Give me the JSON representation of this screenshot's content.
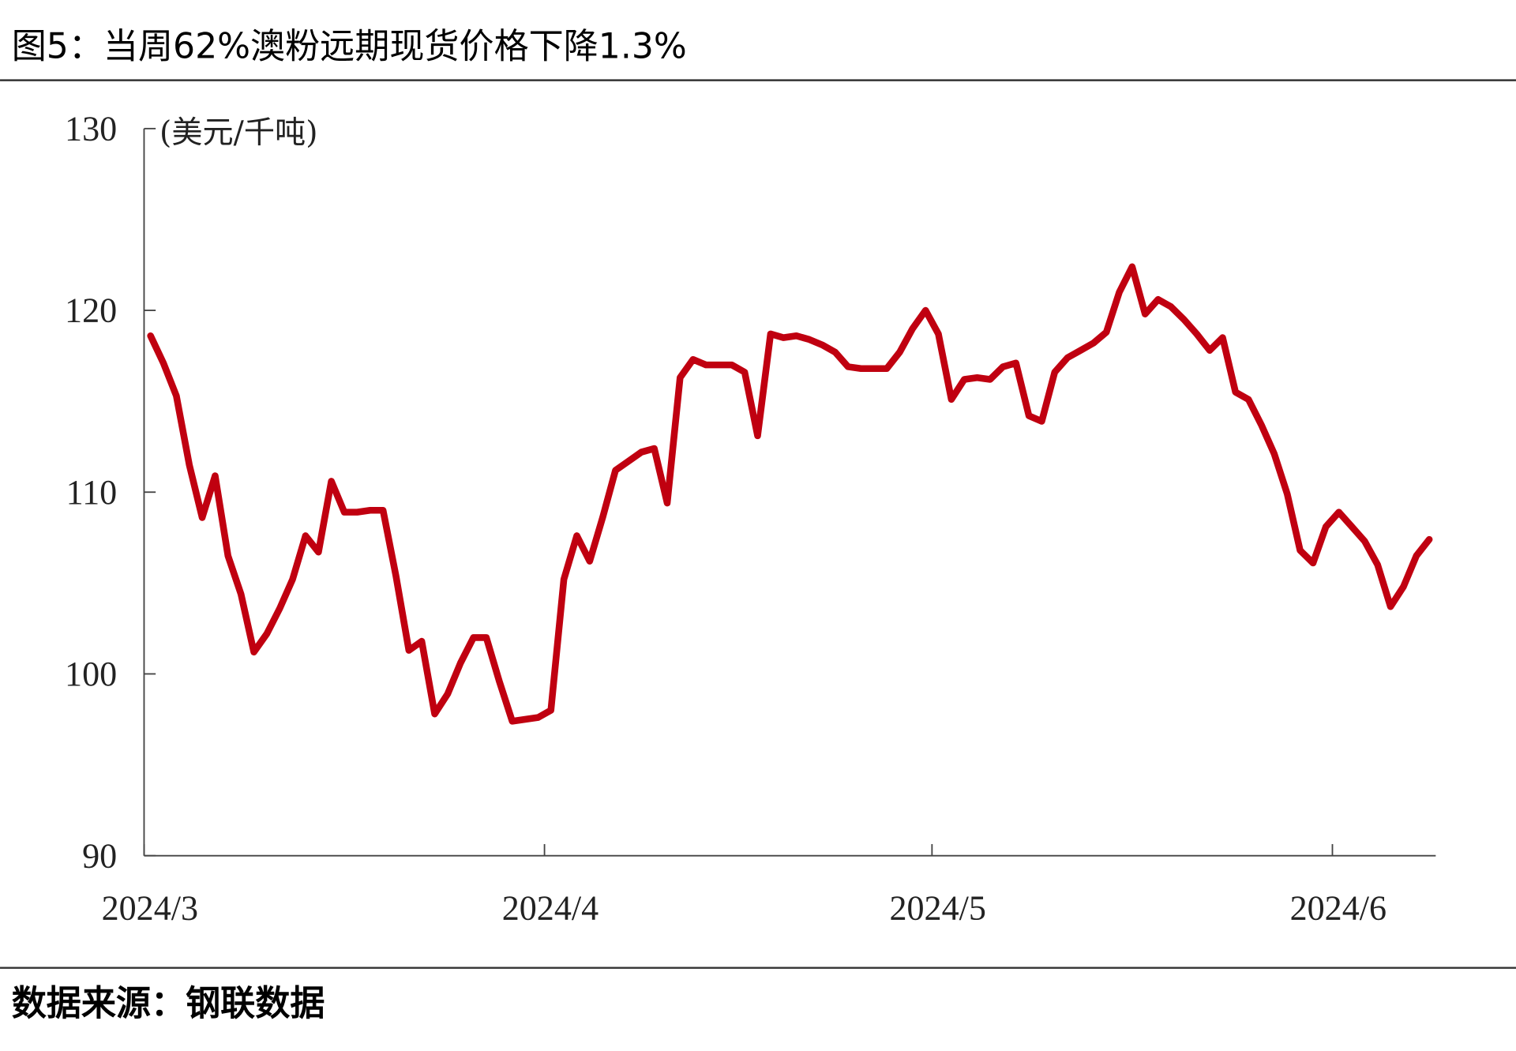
{
  "chart_data": {
    "type": "line",
    "title": "图5：当周62%澳粉远期现货价格下降1.3%",
    "y_label": "(美元/千吨)",
    "source": "数据来源：钢联数据",
    "categories": [
      "2024/3",
      null,
      null,
      null,
      null,
      null,
      null,
      null,
      null,
      null,
      null,
      null,
      null,
      null,
      null,
      null,
      null,
      null,
      null,
      null,
      null,
      null,
      null,
      null,
      null,
      null,
      null,
      null,
      null,
      null,
      null,
      "2024/4",
      null,
      null,
      null,
      null,
      null,
      null,
      null,
      null,
      null,
      null,
      null,
      null,
      null,
      null,
      null,
      null,
      null,
      null,
      null,
      null,
      null,
      null,
      null,
      null,
      null,
      null,
      null,
      null,
      null,
      "2024/5",
      null,
      null,
      null,
      null,
      null,
      null,
      null,
      null,
      null,
      null,
      null,
      null,
      null,
      null,
      null,
      null,
      null,
      null,
      null,
      null,
      null,
      null,
      null,
      null,
      null,
      null,
      null,
      null,
      null,
      null,
      "2024/6",
      null,
      null,
      null,
      null,
      null,
      null,
      null
    ],
    "series": [
      {
        "name": "62%澳粉远期现货价格",
        "color": "#c00010",
        "values": [
          118.6,
          117.1,
          115.3,
          111.5,
          108.6,
          110.9,
          106.5,
          104.4,
          101.2,
          102.2,
          103.6,
          105.2,
          107.6,
          106.7,
          110.6,
          108.9,
          108.9,
          109.0,
          109.0,
          105.4,
          101.3,
          101.8,
          97.8,
          98.9,
          100.6,
          102.0,
          102.0,
          99.6,
          97.4,
          97.5,
          97.6,
          98.0,
          105.2,
          107.6,
          106.2,
          108.6,
          111.2,
          111.7,
          112.2,
          112.4,
          109.4,
          116.3,
          117.3,
          117.0,
          117.0,
          117.0,
          116.6,
          113.1,
          118.7,
          118.5,
          118.6,
          118.4,
          118.1,
          117.7,
          116.9,
          116.8,
          116.8,
          116.8,
          117.7,
          119.0,
          120.0,
          118.7,
          115.1,
          116.2,
          116.3,
          116.2,
          116.9,
          117.1,
          114.2,
          113.9,
          116.6,
          117.4,
          117.8,
          118.2,
          118.8,
          121.0,
          122.4,
          119.8,
          120.6,
          120.2,
          119.5,
          118.7,
          117.8,
          118.5,
          115.5,
          115.1,
          113.7,
          112.1,
          109.9,
          106.8,
          106.1,
          108.1,
          108.9,
          108.1,
          107.3,
          106.0,
          103.7,
          104.8,
          106.5,
          107.4
        ]
      }
    ],
    "ylim": [
      90,
      130
    ],
    "yticks": [
      90,
      100,
      110,
      120,
      130
    ],
    "grid": false
  }
}
